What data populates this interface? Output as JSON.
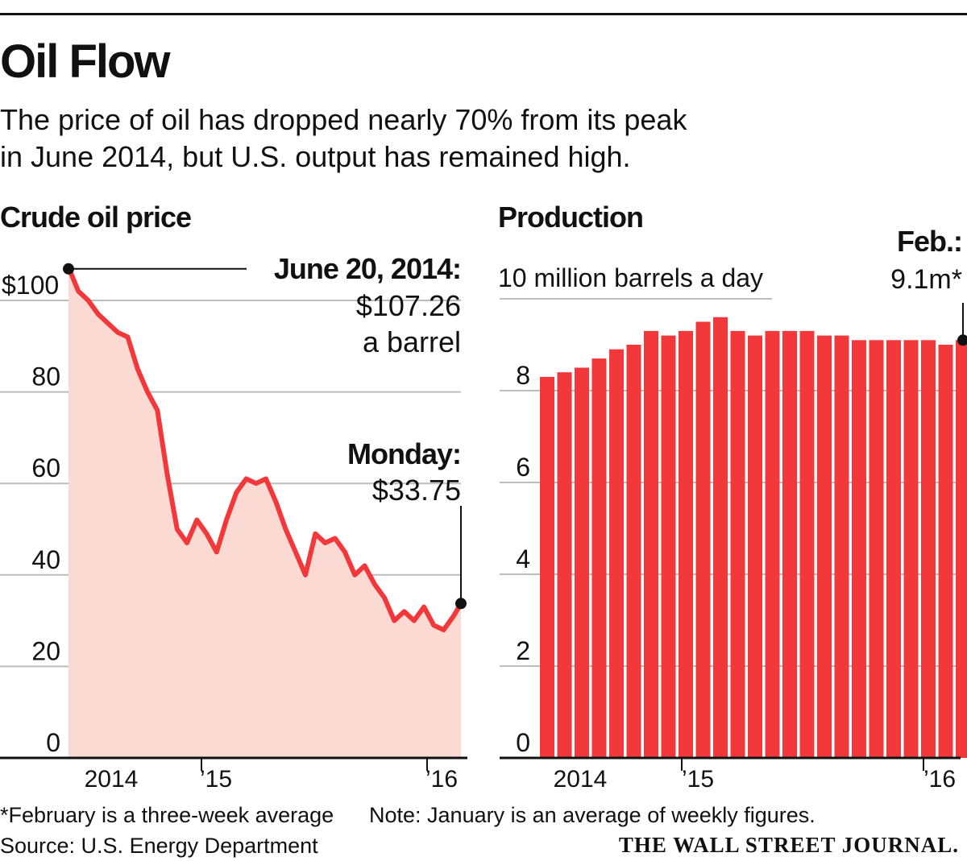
{
  "header": {
    "title": "Oil Flow",
    "subtitle_line1": "The price of oil has dropped nearly 70% from its peak",
    "subtitle_line2": "in June 2014, but U.S. output has remained high."
  },
  "colors": {
    "accent": "#f2383a",
    "fill": "#fbdad3",
    "grid": "#bdbdbd",
    "ink": "#111111"
  },
  "chart_data": [
    {
      "type": "area",
      "title": "Crude oil price",
      "xlabel": "",
      "ylabel": "",
      "ylim": [
        0,
        107.26
      ],
      "yticks": [
        0,
        20,
        40,
        60,
        80,
        100
      ],
      "ytick_labels": [
        "0",
        "20",
        "40",
        "60",
        "80",
        "$100"
      ],
      "xticks": [
        {
          "label": "2014",
          "x": 0.1
        },
        {
          "label": "’15",
          "x": 1.0
        },
        {
          "label": "’16",
          "x": 2.0
        }
      ],
      "x_unit": "years since Jan 2014",
      "x": [
        0.46,
        0.5,
        0.54,
        0.58,
        0.62,
        0.66,
        0.7,
        0.74,
        0.78,
        0.82,
        0.86,
        0.9,
        0.94,
        0.98,
        1.02,
        1.06,
        1.1,
        1.14,
        1.18,
        1.22,
        1.26,
        1.3,
        1.34,
        1.38,
        1.42,
        1.46,
        1.5,
        1.54,
        1.58,
        1.62,
        1.66,
        1.7,
        1.74,
        1.78,
        1.82,
        1.86,
        1.9,
        1.94,
        1.98,
        2.02,
        2.05
      ],
      "values": [
        107.26,
        102,
        100,
        97,
        95,
        93,
        92,
        85,
        80,
        76,
        62,
        50,
        47,
        52,
        49,
        45,
        52,
        58,
        61,
        60,
        61,
        56,
        50,
        45,
        40,
        49,
        47,
        48,
        45,
        40,
        42,
        38,
        35,
        30,
        32,
        30,
        33,
        29,
        28,
        31,
        33.75
      ],
      "annotations": [
        {
          "label": "June 20, 2014:",
          "value": "$107.26",
          "note": "a barrel",
          "x": 0.46,
          "y": 107.26
        },
        {
          "label": "Monday:",
          "value": "$33.75",
          "x": 2.05,
          "y": 33.75
        }
      ]
    },
    {
      "type": "bar",
      "title": "Production",
      "unit_label": "10 million barrels a day",
      "ylim": [
        0,
        10
      ],
      "yticks": [
        0,
        2,
        4,
        6,
        8,
        10
      ],
      "ytick_labels": [
        "0",
        "2",
        "4",
        "6",
        "8",
        ""
      ],
      "xticks": [
        {
          "label": "2014",
          "month": 1
        },
        {
          "label": "’15",
          "month": 12
        },
        {
          "label": "’16",
          "month": 24
        }
      ],
      "values": [
        8.3,
        8.4,
        8.5,
        8.7,
        8.9,
        9.0,
        9.3,
        9.2,
        9.3,
        9.5,
        9.6,
        9.3,
        9.2,
        9.3,
        9.3,
        9.3,
        9.2,
        9.2,
        9.1,
        9.1,
        9.1,
        9.1,
        9.1,
        9.0,
        9.1
      ],
      "annotation": {
        "label": "Feb.:",
        "value": "9.1m*"
      }
    }
  ],
  "footer": {
    "footnote": "*February is a three-week average",
    "note": "Note: January is an average of weekly figures.",
    "source": "Source: U.S. Energy Department",
    "publisher": "THE WALL STREET JOURNAL."
  }
}
